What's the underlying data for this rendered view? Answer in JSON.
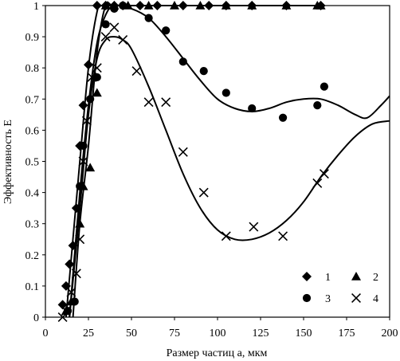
{
  "chart_data": {
    "type": "scatter",
    "xlabel": "Размер частиц a, мкм",
    "ylabel": "Эффективность E",
    "xlim": [
      0,
      200
    ],
    "ylim": [
      0,
      1
    ],
    "x_ticks": [
      "0",
      "25",
      "50",
      "75",
      "100",
      "125",
      "150",
      "175",
      "200"
    ],
    "y_ticks": [
      "0",
      "0.1",
      "0.2",
      "0.3",
      "0.4",
      "0.5",
      "0.6",
      "0.7",
      "0.8",
      "0.9",
      "1"
    ],
    "grid": false,
    "legend_position": "bottom-right",
    "series": [
      {
        "name": "1",
        "marker": "diamond",
        "points": [
          [
            10,
            0.04
          ],
          [
            12,
            0.1
          ],
          [
            14,
            0.17
          ],
          [
            16,
            0.23
          ],
          [
            18,
            0.35
          ],
          [
            20,
            0.55
          ],
          [
            22,
            0.68
          ],
          [
            25,
            0.81
          ],
          [
            30,
            1.0
          ],
          [
            35,
            1.0
          ],
          [
            40,
            1.0
          ],
          [
            45,
            1.0
          ],
          [
            55,
            1.0
          ],
          [
            65,
            1.0
          ],
          [
            80,
            1.0
          ],
          [
            95,
            1.0
          ],
          [
            105,
            1.0
          ],
          [
            120,
            1.0
          ],
          [
            140,
            1.0
          ],
          [
            160,
            1.0
          ]
        ]
      },
      {
        "name": "2",
        "marker": "triangle",
        "points": [
          [
            12,
            0.02
          ],
          [
            15,
            0.05
          ],
          [
            20,
            0.3
          ],
          [
            22,
            0.42
          ],
          [
            26,
            0.48
          ],
          [
            30,
            0.72
          ],
          [
            35,
            1.0
          ],
          [
            40,
            1.0
          ],
          [
            48,
            1.0
          ],
          [
            60,
            1.0
          ],
          [
            75,
            1.0
          ],
          [
            90,
            1.0
          ],
          [
            105,
            1.0
          ],
          [
            120,
            1.0
          ],
          [
            140,
            1.0
          ],
          [
            158,
            1.0
          ],
          [
            160,
            1.0
          ]
        ]
      },
      {
        "name": "3",
        "marker": "circle",
        "points": [
          [
            13,
            0.02
          ],
          [
            17,
            0.05
          ],
          [
            20,
            0.42
          ],
          [
            22,
            0.55
          ],
          [
            26,
            0.7
          ],
          [
            30,
            0.77
          ],
          [
            35,
            0.94
          ],
          [
            40,
            0.99
          ],
          [
            45,
            1.0
          ],
          [
            60,
            0.96
          ],
          [
            70,
            0.92
          ],
          [
            80,
            0.82
          ],
          [
            92,
            0.79
          ],
          [
            105,
            0.72
          ],
          [
            120,
            0.67
          ],
          [
            138,
            0.64
          ],
          [
            158,
            0.68
          ],
          [
            162,
            0.74
          ]
        ]
      },
      {
        "name": "4",
        "marker": "x",
        "points": [
          [
            10,
            0.0
          ],
          [
            12,
            0.02
          ],
          [
            15,
            0.08
          ],
          [
            18,
            0.14
          ],
          [
            20,
            0.25
          ],
          [
            22,
            0.5
          ],
          [
            24,
            0.63
          ],
          [
            27,
            0.77
          ],
          [
            30,
            0.8
          ],
          [
            35,
            0.9
          ],
          [
            40,
            0.93
          ],
          [
            45,
            0.89
          ],
          [
            53,
            0.79
          ],
          [
            60,
            0.69
          ],
          [
            70,
            0.69
          ],
          [
            80,
            0.53
          ],
          [
            92,
            0.4
          ],
          [
            105,
            0.26
          ],
          [
            121,
            0.29
          ],
          [
            138,
            0.26
          ],
          [
            158,
            0.43
          ],
          [
            162,
            0.46
          ]
        ]
      }
    ],
    "curves": [
      {
        "for": "1",
        "x": [
          12,
          20,
          25,
          30,
          33,
          40,
          60,
          100,
          160
        ],
        "y": [
          0.0,
          0.5,
          0.8,
          0.98,
          1.0,
          1.0,
          1.0,
          1.0,
          1.0
        ]
      },
      {
        "for": "2",
        "x": [
          16,
          20,
          25,
          30,
          35,
          40,
          60,
          100,
          160
        ],
        "y": [
          0.0,
          0.3,
          0.55,
          0.85,
          1.0,
          1.0,
          1.0,
          1.0,
          1.0
        ]
      },
      {
        "for": "3",
        "x": [
          14,
          20,
          25,
          30,
          35,
          40,
          50,
          60,
          70,
          80,
          90,
          100,
          110,
          120,
          130,
          140,
          150,
          160,
          170,
          180,
          187,
          195,
          200
        ],
        "y": [
          0.0,
          0.4,
          0.68,
          0.88,
          0.97,
          1.0,
          0.99,
          0.96,
          0.9,
          0.83,
          0.76,
          0.7,
          0.67,
          0.66,
          0.67,
          0.69,
          0.7,
          0.7,
          0.68,
          0.65,
          0.64,
          0.68,
          0.71
        ]
      },
      {
        "for": "4",
        "x": [
          14,
          20,
          25,
          30,
          35,
          40,
          45,
          50,
          60,
          70,
          80,
          90,
          100,
          110,
          120,
          130,
          140,
          150,
          160,
          170,
          180,
          190,
          200
        ],
        "y": [
          0.0,
          0.35,
          0.65,
          0.83,
          0.89,
          0.9,
          0.89,
          0.86,
          0.74,
          0.6,
          0.46,
          0.35,
          0.28,
          0.25,
          0.25,
          0.27,
          0.31,
          0.37,
          0.45,
          0.52,
          0.58,
          0.62,
          0.63
        ]
      }
    ]
  }
}
